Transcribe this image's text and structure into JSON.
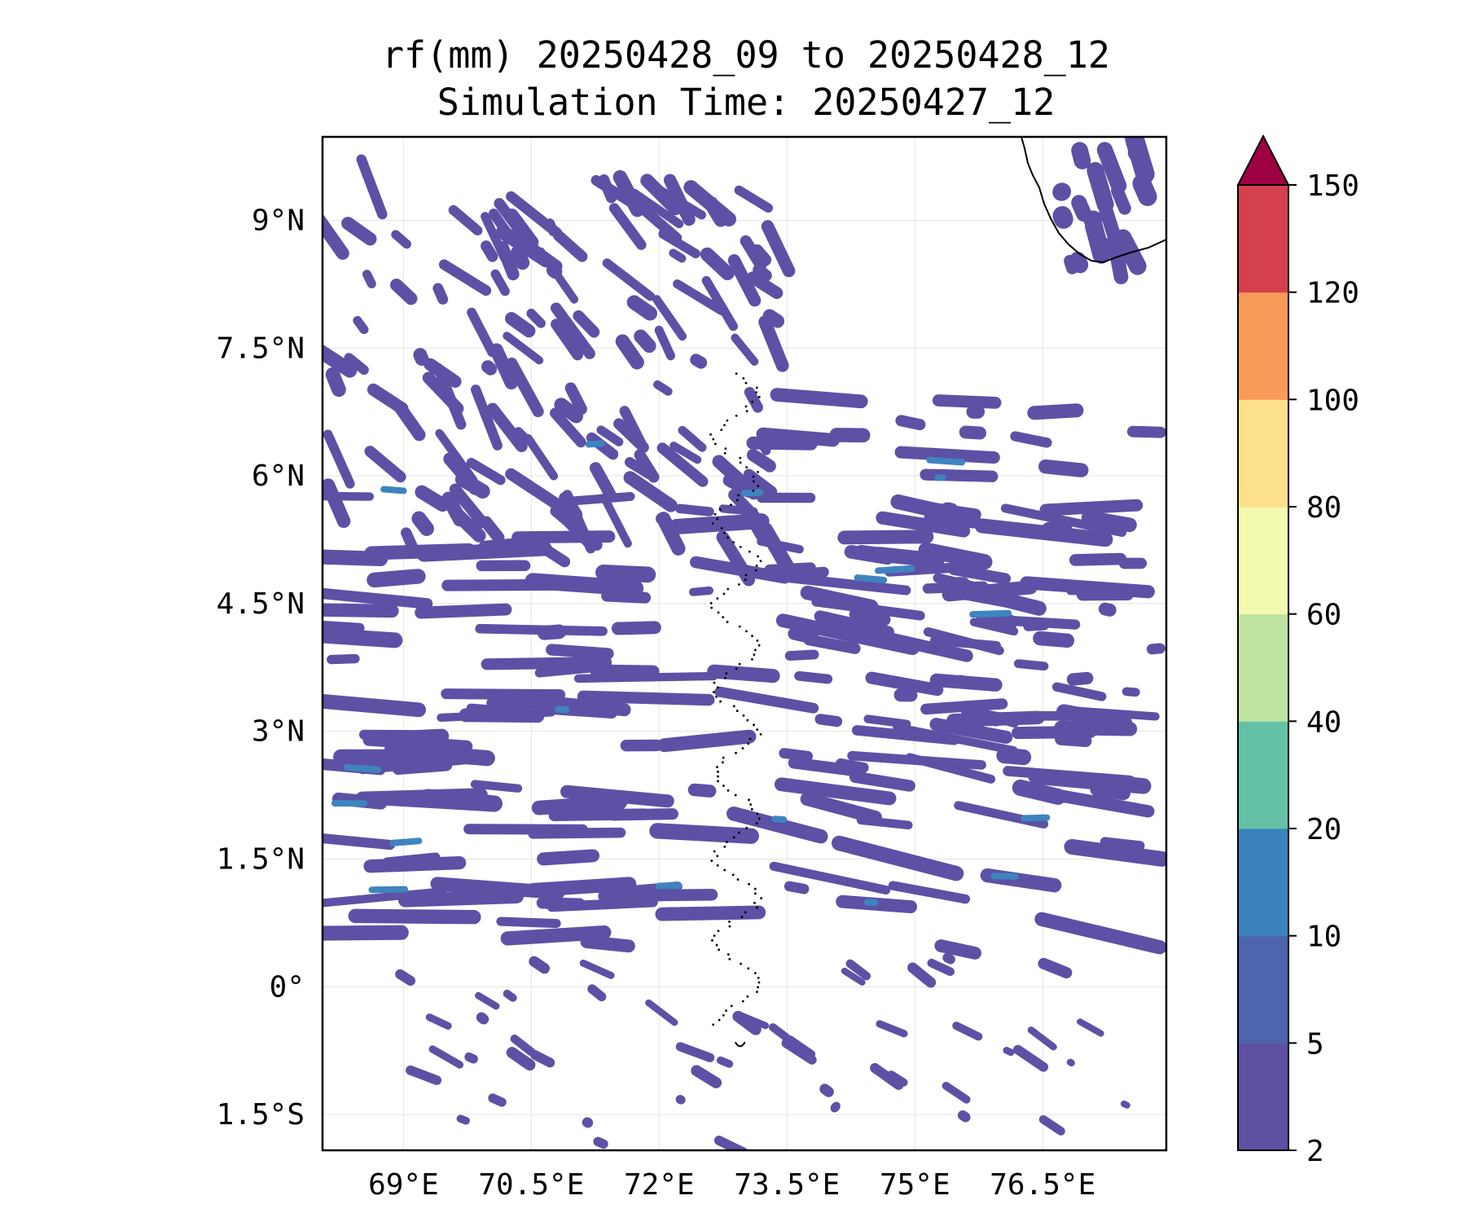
{
  "title": {
    "line1": "rf(mm) 20250428_09 to 20250428_12",
    "line2": "Simulation Time: 20250427_12"
  },
  "map": {
    "x_ticks": [
      {
        "lon": 69,
        "label": "69°E"
      },
      {
        "lon": 70.5,
        "label": "70.5°E"
      },
      {
        "lon": 72,
        "label": "72°E"
      },
      {
        "lon": 73.5,
        "label": "73.5°E"
      },
      {
        "lon": 75,
        "label": "75°E"
      },
      {
        "lon": 76.5,
        "label": "76.5°E"
      }
    ],
    "y_ticks": [
      {
        "lat": 9,
        "label": "9°N"
      },
      {
        "lat": 7.5,
        "label": "7.5°N"
      },
      {
        "lat": 6,
        "label": "6°N"
      },
      {
        "lat": 4.5,
        "label": "4.5°N"
      },
      {
        "lat": 3,
        "label": "3°N"
      },
      {
        "lat": 1.5,
        "label": "1.5°N"
      },
      {
        "lat": 0,
        "label": "0°"
      },
      {
        "lat": -1.5,
        "label": "1.5°S"
      }
    ],
    "lon_range": [
      68.05,
      77.95
    ],
    "lat_range": [
      -1.92,
      9.98
    ],
    "rain_color": "#5c51a5",
    "rain_color_strong": "#3f84bf"
  },
  "colorbar": {
    "levels": [
      "2",
      "5",
      "10",
      "20",
      "40",
      "60",
      "80",
      "100",
      "120",
      "150"
    ],
    "colors": [
      "#5e4fa2",
      "#4e65ad",
      "#3a83bd",
      "#64c0a7",
      "#bde3a0",
      "#f3f9ae",
      "#fde08a",
      "#f89b57",
      "#d5404e"
    ],
    "extend_color": "#9e0142"
  }
}
